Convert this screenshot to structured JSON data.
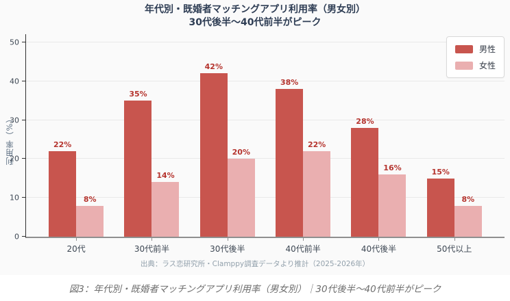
{
  "chart": {
    "title_line1": "年代別・既婚者マッチングアプリ利用率（男女別）",
    "title_line2": "30代後半〜40代前半がピーク",
    "y_axis_title": "利用率（%）",
    "source": "出典：ラス恋研究所・Clamppy調査データより推計（2025-2026年）",
    "legend": [
      {
        "label": "男性",
        "color": "#c8554e"
      },
      {
        "label": "女性",
        "color": "#eaafb0"
      }
    ],
    "colors": {
      "male_bar": "#c8554e",
      "female_bar": "#eaafb0",
      "value_label": "#b5342e",
      "title_text": "#2e3d54",
      "panel_background": "#fafafa"
    }
  },
  "caption": "図3：年代別・既婚者マッチングアプリ利用率（男女別）｜30代後半〜40代前半がピーク",
  "chart_data": {
    "type": "bar",
    "categories": [
      "20代",
      "30代前半",
      "30代後半",
      "40代前半",
      "40代後半",
      "50代以上"
    ],
    "series": [
      {
        "name": "男性",
        "color": "#c8554e",
        "values": [
          22,
          35,
          42,
          38,
          28,
          15
        ]
      },
      {
        "name": "女性",
        "color": "#eaafb0",
        "values": [
          8,
          14,
          20,
          22,
          16,
          8
        ]
      }
    ],
    "value_suffix": "%",
    "value_label_color": "#b5342e",
    "title": "年代別・既婚者マッチングアプリ利用率（男女別）",
    "subtitle": "30代後半〜40代前半がピーク",
    "xlabel": "",
    "ylabel": "利用率（%）",
    "ylim": [
      0,
      50
    ],
    "yticks": [
      0,
      10,
      20,
      30,
      40,
      50
    ],
    "grid": true,
    "legend_position": "top-right"
  }
}
